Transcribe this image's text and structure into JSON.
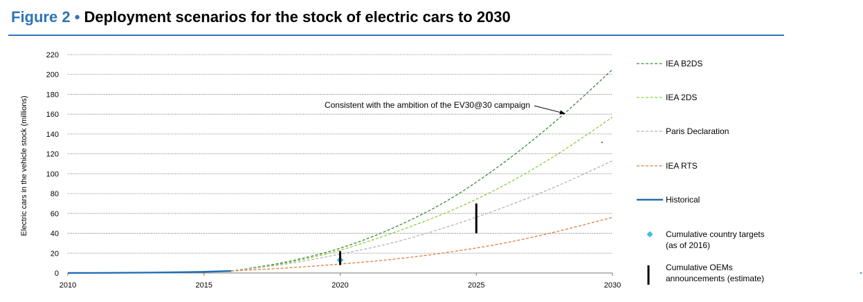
{
  "figure": {
    "number": "Figure 2",
    "separator": "•",
    "title": "Deployment scenarios for the stock of electric cars to 2030"
  },
  "colors": {
    "accent": "#2e75b6",
    "iea_b2ds": "#3a8a3a",
    "iea_2ds": "#8ccf3a",
    "paris": "#b3b3b3",
    "iea_rts": "#e07b39",
    "historical": "#1f6fb5",
    "country_targets": "#3dbfd9",
    "oem": "#000000"
  },
  "chart_data": {
    "type": "line",
    "title": "Deployment scenarios for the stock of electric cars to 2030",
    "xlabel": "",
    "ylabel": "Electric cars in the vehicle stock (millions)",
    "xlim": [
      2010,
      2030
    ],
    "ylim": [
      0,
      220
    ],
    "x_ticks": [
      "2010",
      "2015",
      "2020",
      "2025",
      "2030"
    ],
    "y_ticks": [
      "0",
      "20",
      "40",
      "60",
      "80",
      "100",
      "120",
      "140",
      "160",
      "180",
      "200",
      "220"
    ],
    "grid": "horizontal dotted",
    "legend_position": "right",
    "series": [
      {
        "name": "IEA B2DS",
        "style": "dashed",
        "x": [
          2016,
          2018,
          2020,
          2022,
          2024,
          2026,
          2028,
          2030
        ],
        "y": [
          2,
          11,
          25,
          46,
          74,
          111,
          155,
          205
        ]
      },
      {
        "name": "IEA 2DS",
        "style": "dashed",
        "x": [
          2016,
          2018,
          2020,
          2022,
          2024,
          2026,
          2028,
          2030
        ],
        "y": [
          2,
          10,
          23,
          41,
          62,
          88,
          120,
          157
        ]
      },
      {
        "name": "Paris Declaration",
        "style": "dashed",
        "x": [
          2016,
          2018,
          2020,
          2022,
          2024,
          2026,
          2028,
          2030
        ],
        "y": [
          2,
          9,
          19,
          31,
          47,
          66,
          88,
          113
        ]
      },
      {
        "name": "IEA RTS",
        "style": "dashed",
        "x": [
          2016,
          2018,
          2020,
          2022,
          2024,
          2026,
          2028,
          2030
        ],
        "y": [
          2,
          5,
          9,
          14,
          21,
          30,
          42,
          56
        ]
      },
      {
        "name": "Historical",
        "style": "solid",
        "x": [
          2010,
          2011,
          2012,
          2013,
          2014,
          2015,
          2016
        ],
        "y": [
          0,
          0.05,
          0.2,
          0.4,
          0.7,
          1.2,
          2
        ]
      }
    ],
    "markers": [
      {
        "name": "Cumulative country targets (as of 2016)",
        "shape": "diamond",
        "x": 2020,
        "y": 13
      },
      {
        "name": "Cumulative OEMs announcements (estimate)",
        "shape": "bar",
        "x": 2020,
        "y_low": 8,
        "y_high": 22
      },
      {
        "name": "Cumulative OEMs announcements (estimate)",
        "shape": "bar",
        "x": 2025,
        "y_low": 40,
        "y_high": 70
      }
    ],
    "annotation": {
      "text": "Consistent with the ambition of the EV30@30 campaign",
      "arrow_to": {
        "x": 2028.3,
        "y": 162
      }
    },
    "legend": [
      {
        "label": "IEA B2DS",
        "kind": "line",
        "style": "dashed",
        "color_key": "iea_b2ds"
      },
      {
        "label": "IEA 2DS",
        "kind": "line",
        "style": "dashed",
        "color_key": "iea_2ds"
      },
      {
        "label": "Paris Declaration",
        "kind": "line",
        "style": "dashed",
        "color_key": "paris"
      },
      {
        "label": "IEA RTS",
        "kind": "line",
        "style": "dashed",
        "color_key": "iea_rts"
      },
      {
        "label": "Historical",
        "kind": "line",
        "style": "solid",
        "color_key": "historical"
      },
      {
        "label": [
          "Cumulative country targets",
          "(as of 2016)"
        ],
        "kind": "diamond",
        "color_key": "country_targets"
      },
      {
        "label": [
          "Cumulative OEMs",
          "announcements (estimate)"
        ],
        "kind": "bar",
        "color_key": "oem"
      }
    ]
  }
}
